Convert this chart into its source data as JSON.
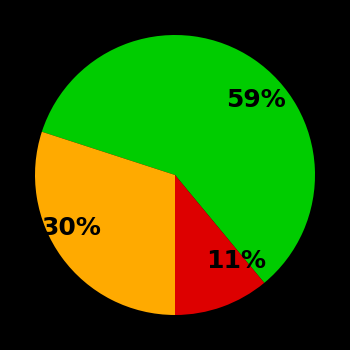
{
  "slices": [
    59,
    11,
    30
  ],
  "colors": [
    "#00cc00",
    "#dd0000",
    "#ffaa00"
  ],
  "labels": [
    "59%",
    "11%",
    "30%"
  ],
  "background_color": "#000000",
  "text_color": "#000000",
  "font_size": 18,
  "font_weight": "bold",
  "startangle": 162,
  "labeldistance": 0.65,
  "figsize": [
    3.5,
    3.5
  ],
  "dpi": 100
}
